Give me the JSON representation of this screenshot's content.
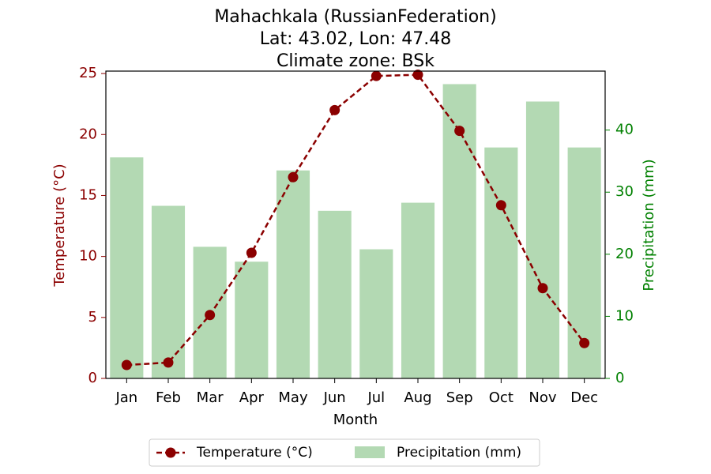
{
  "chart_data": {
    "type": "bar+line",
    "title_lines": [
      "Mahachkala (RussianFederation)",
      "Lat: 43.02, Lon: 47.48",
      "Climate zone: BSk"
    ],
    "xlabel": "Month",
    "categories": [
      "Jan",
      "Feb",
      "Mar",
      "Apr",
      "May",
      "Jun",
      "Jul",
      "Aug",
      "Sep",
      "Oct",
      "Nov",
      "Dec"
    ],
    "temperature": {
      "name": "Temperature (°C)",
      "axis_label": "Temperature (°C)",
      "color": "#8b0000",
      "ylim": [
        0,
        25.2
      ],
      "ticks": [
        0,
        5,
        10,
        15,
        20,
        25
      ],
      "values": [
        1.1,
        1.3,
        5.2,
        10.3,
        16.5,
        22.0,
        24.8,
        24.9,
        20.3,
        14.2,
        7.4,
        2.9
      ]
    },
    "precipitation": {
      "name": "Precipitation (mm)",
      "axis_label": "Precipitation (mm)",
      "color": "#b3d9b3",
      "axis_color": "#008000",
      "ylim": [
        0,
        49.5
      ],
      "ticks": [
        0,
        10,
        20,
        30,
        40
      ],
      "values": [
        35.6,
        27.8,
        21.2,
        18.8,
        33.5,
        27.0,
        20.8,
        28.3,
        47.4,
        37.2,
        44.6,
        37.2
      ]
    },
    "legend_position": "bottom-center"
  }
}
